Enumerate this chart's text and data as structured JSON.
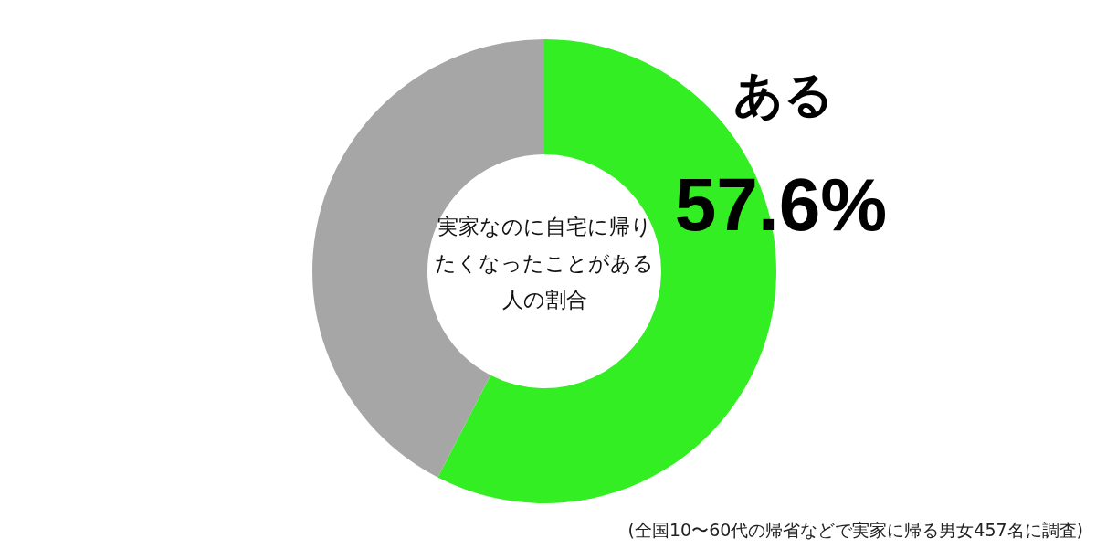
{
  "chart_data": {
    "type": "donut",
    "title": "実家なのに自宅に帰りたくなったことがある人の割合",
    "categories": [
      "ある",
      null
    ],
    "values": [
      57.6,
      42.4
    ],
    "colors": [
      "#33ee22",
      "#a6a6a6"
    ],
    "value_labels": [
      "57.6%",
      null
    ],
    "annotations": [
      "(全国10〜60代の帰省などで実家に帰る男女457名に調査)"
    ]
  }
}
